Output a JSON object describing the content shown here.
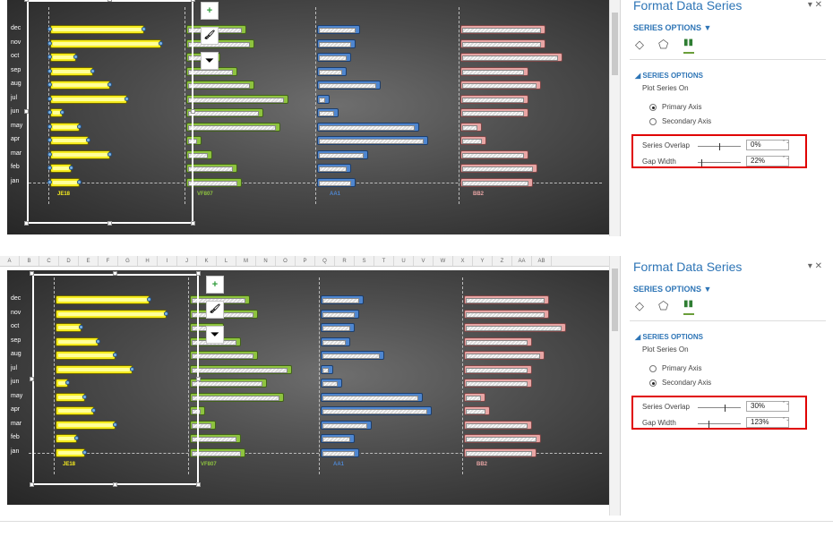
{
  "months": [
    "dec",
    "nov",
    "oct",
    "sep",
    "aug",
    "jul",
    "jun",
    "may",
    "apr",
    "mar",
    "feb",
    "jan"
  ],
  "column_strip": [
    "A",
    "B",
    "C",
    "D",
    "E",
    "F",
    "G",
    "H",
    "I",
    "J",
    "K",
    "L",
    "M",
    "N",
    "O",
    "P",
    "Q",
    "R",
    "S",
    "T",
    "U",
    "V",
    "W",
    "X",
    "Y",
    "Z",
    "AA",
    "AB"
  ],
  "panel": {
    "title": "Format Data Series",
    "close": "▾ ✕",
    "series_options_label": "SERIES OPTIONS ▼",
    "section_label": "◢ SERIES OPTIONS",
    "plot_on_label": "Plot Series On",
    "primary_axis": "Primary Axis",
    "secondary_axis": "Secondary Axis",
    "overlap_label": "Series Overlap",
    "gap_label": "Gap Width"
  },
  "tools": {
    "plus": "+",
    "brush": "🖌",
    "filter": "⏷"
  },
  "screens": [
    {
      "categories": [
        "JE18",
        "VF807",
        "AA1",
        "BB2"
      ],
      "category_colors": [
        "#f6ec1e",
        "#8ec33f",
        "#4f86cf",
        "#e8a5a4"
      ],
      "series_overlap": "0%",
      "gap_width": "22%",
      "plot_series_on": "Primary Axis"
    },
    {
      "categories": [
        "JE18",
        "VF807",
        "AA1",
        "BB2"
      ],
      "category_colors": [
        "#f6ec1e",
        "#8ec33f",
        "#4f86cf",
        "#e8a5a4"
      ],
      "series_overlap": "30%",
      "gap_width": "123%",
      "plot_series_on": "Secondary Axis"
    }
  ],
  "chart_data": [
    {
      "type": "bar",
      "categories": [
        "dec",
        "nov",
        "oct",
        "sep",
        "aug",
        "jul",
        "jun",
        "may",
        "apr",
        "mar",
        "feb",
        "jan"
      ],
      "series": [
        {
          "name": "JE18",
          "values": [
            110,
            130,
            30,
            50,
            70,
            90,
            15,
            35,
            45,
            70,
            25,
            35
          ]
        },
        {
          "name": "VF807",
          "values": [
            70,
            80,
            40,
            60,
            80,
            120,
            90,
            110,
            18,
            30,
            60,
            65
          ]
        },
        {
          "name": "AA1",
          "values": [
            50,
            45,
            40,
            35,
            75,
            15,
            25,
            120,
            130,
            60,
            40,
            45
          ]
        },
        {
          "name": "BB2",
          "values": [
            100,
            100,
            120,
            80,
            95,
            80,
            80,
            25,
            30,
            80,
            90,
            85
          ]
        }
      ]
    },
    {
      "type": "bar",
      "categories": [
        "dec",
        "nov",
        "oct",
        "sep",
        "aug",
        "jul",
        "jun",
        "may",
        "apr",
        "mar",
        "feb",
        "jan"
      ],
      "series": [
        {
          "name": "JE18",
          "values": [
            110,
            130,
            30,
            50,
            70,
            90,
            15,
            35,
            45,
            70,
            25,
            35
          ]
        },
        {
          "name": "VF807",
          "values": [
            70,
            80,
            40,
            60,
            80,
            120,
            90,
            110,
            18,
            30,
            60,
            65
          ]
        },
        {
          "name": "AA1",
          "values": [
            50,
            45,
            40,
            35,
            75,
            15,
            25,
            120,
            130,
            60,
            40,
            45
          ]
        },
        {
          "name": "BB2",
          "values": [
            100,
            100,
            120,
            80,
            95,
            80,
            80,
            25,
            30,
            80,
            90,
            85
          ]
        }
      ]
    }
  ]
}
